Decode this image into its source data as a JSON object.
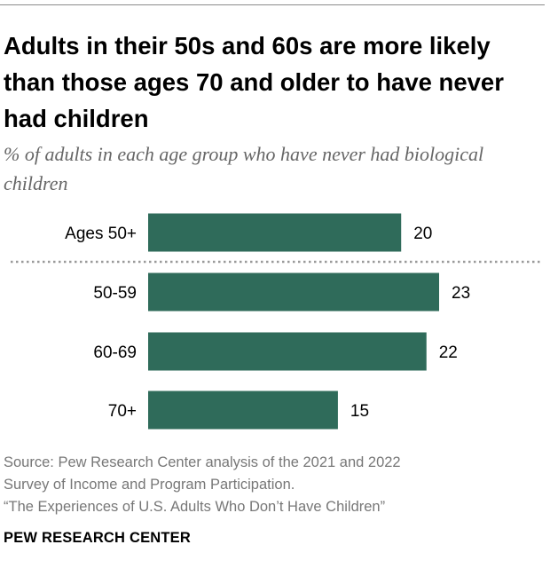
{
  "title": "Adults in their 50s and 60s are more likely than those ages 70 and older to have never had children",
  "subtitle": "% of adults in each age group who have never had biological children",
  "source": {
    "line1": "Source: Pew Research Center analysis of the 2021 and 2022",
    "line2": "Survey of Income and Program Participation.",
    "line3": "“The Experiences of U.S. Adults Who Don’t Have Children”"
  },
  "brand": "PEW RESEARCH CENTER",
  "colors": {
    "bar": "#2f6b5a",
    "divider": "#9a9a9a",
    "rule": "#8c8c8c"
  },
  "chart_data": {
    "type": "bar",
    "orientation": "horizontal",
    "categories": [
      "Ages 50+",
      "50-59",
      "60-69",
      "70+"
    ],
    "values": [
      20,
      23,
      22,
      15
    ],
    "data_labels": [
      "20",
      "23",
      "22",
      "15"
    ],
    "divider_after": "Ages 50+",
    "xlim": [
      0,
      23
    ],
    "unit": "%",
    "grid": false,
    "legend": "none"
  }
}
